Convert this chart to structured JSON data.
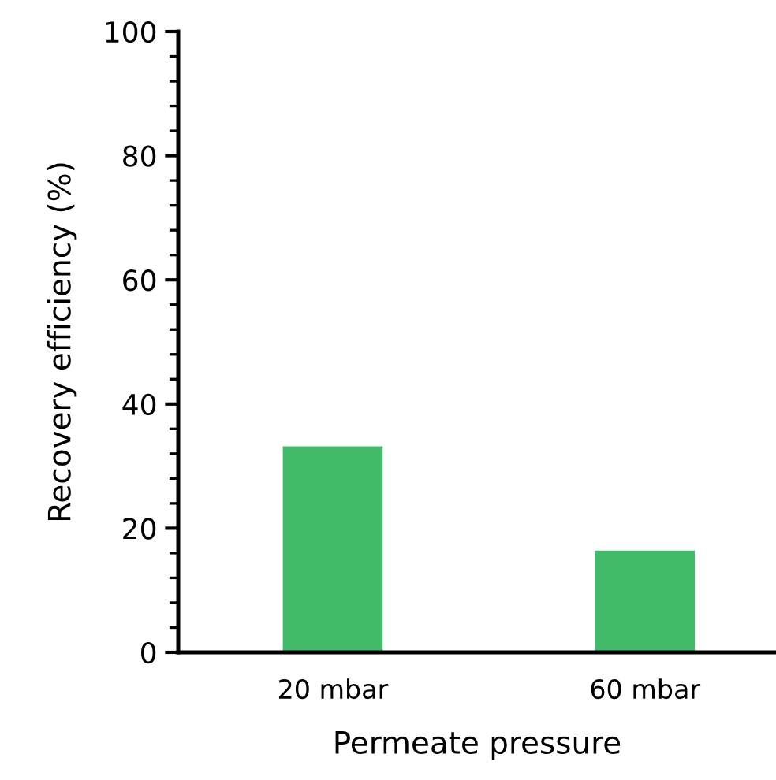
{
  "chart_data": {
    "type": "bar",
    "xlabel": "Permeate pressure",
    "ylabel": "Recovery efficiency (%)",
    "categories": [
      "20 mbar",
      "60 mbar"
    ],
    "values": [
      33.2,
      16.4
    ],
    "color": "#41bb6a",
    "ylim": [
      0,
      100
    ],
    "yticks": [
      0,
      20,
      40,
      60,
      80,
      100
    ],
    "grid": false
  }
}
